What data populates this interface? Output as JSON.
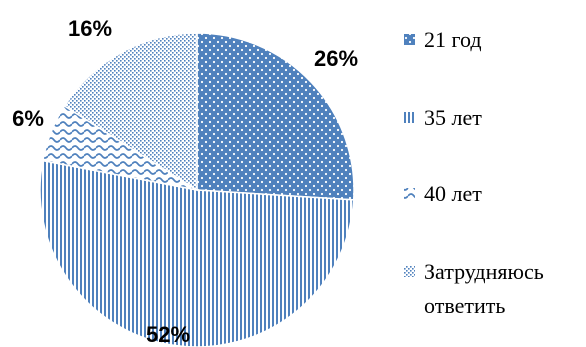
{
  "chart_data": {
    "type": "pie",
    "title": "",
    "categories": [
      "21 год",
      "35 лет",
      "40 лет",
      "Затрудняюсь ответить"
    ],
    "values": [
      26,
      52,
      6,
      16
    ],
    "value_labels": [
      "26%",
      "52%",
      "6%",
      "16%"
    ],
    "legend_position": "right",
    "series_colors": [
      "#4f81bd",
      "#4f81bd",
      "#4f81bd",
      "#4f81bd"
    ],
    "patterns": [
      "dots",
      "vertical-lines",
      "waves",
      "dotted-grid"
    ]
  }
}
